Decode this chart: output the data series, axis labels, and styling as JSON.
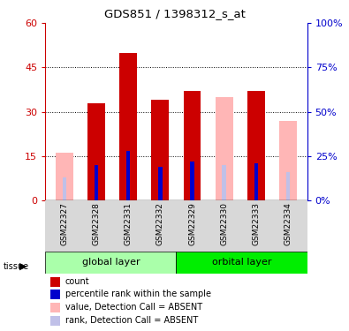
{
  "title": "GDS851 / 1398312_s_at",
  "samples": [
    "GSM22327",
    "GSM22328",
    "GSM22331",
    "GSM22332",
    "GSM22329",
    "GSM22330",
    "GSM22333",
    "GSM22334"
  ],
  "count_values": [
    0,
    33,
    50,
    34,
    37,
    0,
    37,
    0
  ],
  "rank_values": [
    0,
    20,
    28,
    19,
    22,
    0,
    21,
    0
  ],
  "absent_value": [
    16,
    0,
    0,
    0,
    0,
    35,
    0,
    27
  ],
  "absent_rank": [
    13,
    0,
    0,
    0,
    0,
    20,
    0,
    16
  ],
  "count_color": "#cc0000",
  "rank_color": "#0000cc",
  "absent_value_color": "#ffb6b6",
  "absent_rank_color": "#c0c0e8",
  "ylim_left": [
    0,
    60
  ],
  "ylim_right": [
    0,
    100
  ],
  "yticks_left": [
    0,
    15,
    30,
    45,
    60
  ],
  "yticks_right": [
    0,
    25,
    50,
    75,
    100
  ],
  "ytick_labels_right": [
    "0%",
    "25%",
    "50%",
    "75%",
    "100%"
  ],
  "background_color": "#ffffff",
  "group_colors": [
    "#aaffaa",
    "#00ee00"
  ]
}
